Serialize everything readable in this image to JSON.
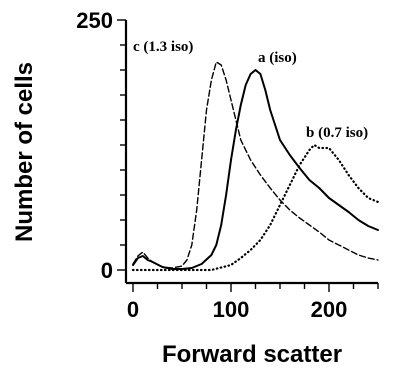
{
  "chart_data": {
    "type": "line",
    "title": "",
    "xlabel": "Forward scatter",
    "ylabel": "Number of cells",
    "xlim": [
      0,
      250
    ],
    "ylim": [
      0,
      250
    ],
    "x_ticks": [
      0,
      100,
      200
    ],
    "y_ticks": [
      0,
      250
    ],
    "x_minor_step": 25,
    "y_minor_step": 25,
    "grid": false,
    "legend": "none (series labelled directly on curves)",
    "series": [
      {
        "name": "a (iso)",
        "style": "solid",
        "color": "#000000",
        "x": [
          0,
          5,
          10,
          15,
          20,
          30,
          40,
          50,
          60,
          70,
          80,
          85,
          90,
          95,
          100,
          105,
          110,
          115,
          120,
          125,
          130,
          135,
          140,
          145,
          150,
          160,
          170,
          180,
          190,
          200,
          210,
          220,
          230,
          240,
          250
        ],
        "y": [
          5,
          12,
          14,
          10,
          8,
          3,
          1,
          1,
          2,
          6,
          15,
          25,
          45,
          75,
          110,
          140,
          165,
          185,
          196,
          200,
          196,
          180,
          160,
          145,
          130,
          115,
          102,
          90,
          82,
          72,
          65,
          58,
          50,
          44,
          40
        ]
      },
      {
        "name": "b (0.7 iso)",
        "style": "dotted",
        "color": "#000000",
        "x": [
          0,
          5,
          10,
          20,
          40,
          60,
          80,
          100,
          110,
          120,
          130,
          140,
          150,
          160,
          170,
          180,
          185,
          190,
          200,
          210,
          220,
          230,
          240,
          250
        ],
        "y": [
          0,
          0,
          0,
          0,
          0,
          0,
          0,
          5,
          12,
          20,
          30,
          45,
          65,
          85,
          105,
          120,
          125,
          122,
          122,
          110,
          95,
          82,
          72,
          68
        ]
      },
      {
        "name": "c (1.3 iso)",
        "style": "dashed",
        "color": "#000000",
        "x": [
          0,
          5,
          10,
          15,
          20,
          30,
          40,
          50,
          55,
          60,
          65,
          70,
          75,
          80,
          85,
          90,
          95,
          100,
          105,
          110,
          120,
          130,
          140,
          150,
          160,
          170,
          180,
          190,
          200,
          210,
          220,
          230,
          240,
          250
        ],
        "y": [
          6,
          14,
          18,
          12,
          8,
          3,
          2,
          4,
          10,
          25,
          60,
          110,
          160,
          190,
          208,
          205,
          190,
          170,
          150,
          130,
          110,
          95,
          82,
          70,
          60,
          52,
          45,
          38,
          30,
          25,
          20,
          15,
          12,
          10
        ]
      }
    ]
  }
}
